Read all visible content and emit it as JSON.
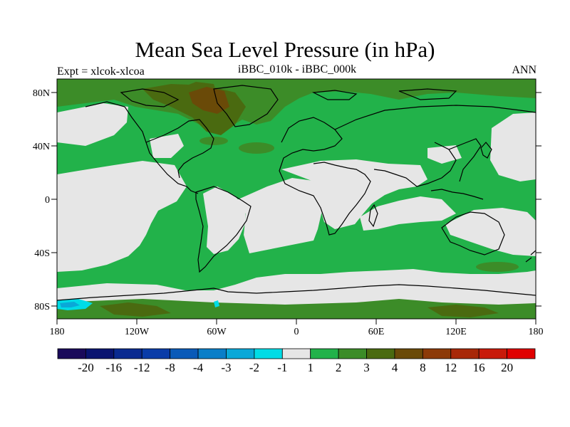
{
  "title": "Mean Sea Level Pressure (in hPa)",
  "left_label": "Expt = xlcok-xlcoa",
  "center_label": "iBBC_010k - iBBC_000k",
  "right_label": "ANN",
  "y_ticks": [
    "80N",
    "40N",
    "0",
    "40S",
    "80S"
  ],
  "x_ticks": [
    "180",
    "120W",
    "60W",
    "0",
    "60E",
    "120E",
    "180"
  ],
  "colorbar": {
    "labels": [
      "-20",
      "-16",
      "-12",
      "-8",
      "-4",
      "-3",
      "-2",
      "-1",
      "1",
      "2",
      "3",
      "4",
      "8",
      "12",
      "16",
      "20"
    ],
    "colors": [
      "#1a0a5a",
      "#0a1470",
      "#0a2a90",
      "#0a3ca8",
      "#0a5ab8",
      "#0a7ec8",
      "#0aa8d8",
      "#00dce6",
      "#e6e6e6",
      "#22b24a",
      "#3c8c28",
      "#4a6a10",
      "#6a4a08",
      "#8c3a08",
      "#a82808",
      "#c81a0a",
      "#e00000"
    ]
  },
  "map_colors": {
    "neutral": "#e6e6e6",
    "positive_1_2": "#22b24a",
    "positive_2_3": "#3c8c28",
    "positive_3_4": "#4a6a10",
    "positive_4_8": "#6a4a08",
    "negative_1_2": "#00dce6",
    "negative_2_3": "#0aa8d8"
  }
}
